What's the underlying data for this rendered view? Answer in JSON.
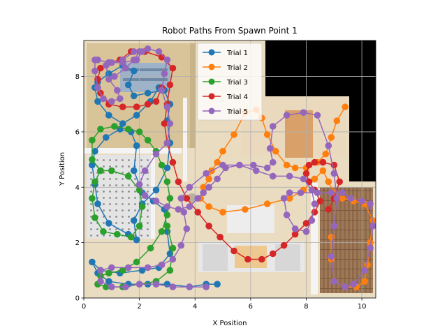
{
  "chart_data": {
    "type": "line",
    "title": "Robot Paths From Spawn Point 1",
    "xlabel": "X Position",
    "ylabel": "Y Position",
    "xlim": [
      0,
      10.5
    ],
    "ylim": [
      0,
      9.3
    ],
    "xticks": [
      0,
      2,
      4,
      6,
      8,
      10
    ],
    "yticks": [
      0,
      2,
      4,
      6,
      8
    ],
    "grid": true,
    "legend_placement": "top-center",
    "background": "overhead floor-plan image of a house interior",
    "series": [
      {
        "name": "Trial 1",
        "color": "#1f77b4",
        "x": [
          4.8,
          4.4,
          3.8,
          3.0,
          2.3,
          1.6,
          0.9,
          0.5,
          0.3,
          0.6,
          1.3,
          2.1,
          2.7,
          3.1,
          3.0,
          2.9,
          2.5,
          2.1,
          1.8,
          1.9,
          1.7,
          1.3,
          0.8,
          0.4,
          0.3,
          0.4,
          0.5,
          0.9,
          1.6,
          1.9,
          1.8,
          2.1,
          2.6,
          3.0,
          3.1,
          3.0,
          3.1,
          2.9,
          2.3,
          1.8,
          1.6,
          1.8,
          1.4,
          0.9,
          0.5,
          0.4,
          0.5,
          0.9,
          1.4,
          1.9,
          2.4,
          2.7
        ],
        "y": [
          0.5,
          0.5,
          0.4,
          0.5,
          0.5,
          0.5,
          0.6,
          0.9,
          1.3,
          1.0,
          0.9,
          1.0,
          1.1,
          1.6,
          2.4,
          3.2,
          3.5,
          3.8,
          4.6,
          5.5,
          6.0,
          6.1,
          5.8,
          5.3,
          4.8,
          4.1,
          3.4,
          2.7,
          2.3,
          2.1,
          2.8,
          3.4,
          3.9,
          4.7,
          5.6,
          6.4,
          7.0,
          7.5,
          7.4,
          7.3,
          7.7,
          8.2,
          8.4,
          8.1,
          7.8,
          7.6,
          7.1,
          6.6,
          6.3,
          6.6,
          7.1,
          7.6
        ]
      },
      {
        "name": "Trial 2",
        "color": "#ff7f0e",
        "x": [
          9.4,
          9.1,
          8.9,
          8.7,
          8.4,
          8.0,
          7.6,
          7.3,
          6.9,
          6.6,
          6.4,
          6.2,
          5.8,
          5.4,
          5.0,
          4.8,
          4.6,
          4.5,
          4.3,
          4.2,
          4.5,
          5.0,
          5.8,
          6.6,
          7.4,
          7.9,
          8.3,
          8.6,
          8.8,
          9.0,
          9.3,
          9.7,
          10.1,
          10.4,
          10.3,
          10.2,
          10.1,
          9.8,
          9.4,
          9.0,
          8.9,
          8.9
        ],
        "y": [
          6.9,
          6.4,
          5.8,
          5.2,
          4.9,
          4.7,
          4.7,
          4.8,
          5.3,
          5.9,
          6.5,
          6.8,
          6.7,
          5.9,
          5.3,
          4.9,
          4.6,
          4.3,
          4.0,
          3.6,
          3.3,
          3.1,
          3.2,
          3.4,
          3.6,
          3.9,
          4.3,
          4.6,
          4.2,
          3.8,
          3.6,
          3.5,
          3.4,
          2.8,
          2.0,
          1.2,
          0.6,
          0.4,
          0.4,
          0.6,
          1.4,
          2.2
        ]
      },
      {
        "name": "Trial 3",
        "color": "#2ca02c",
        "x": [
          0.6,
          0.4,
          0.3,
          0.4,
          0.7,
          1.2,
          1.7,
          2.0,
          2.1,
          2.0,
          1.6,
          1.0,
          0.6,
          0.3,
          0.3,
          0.6,
          1.1,
          1.6,
          2.0,
          2.3,
          2.6,
          2.8,
          3.0,
          3.1,
          3.0,
          2.8,
          2.4,
          1.9,
          1.4,
          0.9,
          0.6,
          0.5,
          0.8,
          1.4,
          2.0,
          2.6,
          3.1,
          3.2,
          3.0
        ],
        "y": [
          4.6,
          4.2,
          3.6,
          2.9,
          2.4,
          2.3,
          2.2,
          2.6,
          3.3,
          3.9,
          4.4,
          4.6,
          4.6,
          5.0,
          5.7,
          6.1,
          6.2,
          6.1,
          6.0,
          5.7,
          5.3,
          4.8,
          4.2,
          3.6,
          3.0,
          2.4,
          1.8,
          1.3,
          1.0,
          0.9,
          0.8,
          0.5,
          0.4,
          0.4,
          0.5,
          0.6,
          1.0,
          1.8,
          2.6
        ]
      },
      {
        "name": "Trial 4",
        "color": "#d62728",
        "x": [
          2.8,
          2.6,
          2.3,
          1.9,
          1.4,
          0.9,
          0.6,
          0.5,
          0.6,
          0.9,
          1.3,
          1.7,
          2.2,
          2.8,
          3.2,
          3.1,
          3.0,
          2.9,
          3.0,
          3.2,
          3.4,
          3.7,
          4.1,
          4.5,
          4.9,
          5.4,
          5.9,
          6.4,
          6.8,
          7.2,
          7.6,
          8.0,
          8.3,
          8.5,
          8.3,
          8.1,
          8.0,
          8.1,
          8.3,
          8.6,
          9.0,
          9.2,
          9.0,
          8.8
        ],
        "y": [
          7.6,
          7.1,
          7.0,
          6.9,
          6.9,
          7.0,
          7.4,
          7.9,
          8.3,
          8.5,
          8.6,
          8.9,
          8.9,
          8.7,
          8.3,
          7.7,
          7.0,
          6.3,
          5.6,
          4.9,
          4.2,
          3.6,
          3.1,
          2.6,
          2.2,
          1.7,
          1.4,
          1.4,
          1.6,
          1.9,
          2.3,
          2.7,
          3.1,
          3.5,
          3.9,
          4.2,
          4.5,
          4.8,
          4.9,
          4.9,
          4.8,
          4.2,
          3.6,
          3.2
        ]
      },
      {
        "name": "Trial 5",
        "color": "#9467bd",
        "x": [
          4.4,
          3.8,
          3.2,
          2.6,
          2.0,
          1.5,
          1.0,
          0.6,
          0.6,
          1.0,
          1.6,
          2.3,
          2.8,
          3.2,
          3.5,
          3.7,
          3.6,
          3.5,
          3.8,
          4.4,
          5.0,
          5.6,
          6.2,
          6.8,
          7.4,
          7.9,
          8.2,
          8.3,
          8.2,
          8.0,
          7.6,
          7.3,
          7.2,
          7.4,
          7.8,
          8.4,
          8.9,
          9.3,
          9.6,
          10.0,
          10.3,
          10.4,
          10.3,
          10.1,
          9.7,
          9.4,
          9.0,
          8.9,
          9.0,
          9.1,
          9.0,
          8.8,
          8.4,
          7.9,
          7.3,
          6.8,
          6.7,
          6.8,
          6.6,
          6.1,
          5.6,
          5.1,
          4.8,
          4.5,
          4.3,
          4.1,
          3.8,
          3.4,
          3.0,
          2.6,
          2.2,
          2.0,
          2.2,
          2.6,
          3.0,
          3.1,
          3.0,
          2.8,
          2.9,
          3.0,
          2.7,
          2.3,
          1.8,
          1.4,
          1.0,
          0.8,
          0.9,
          1.2,
          1.3,
          1.0,
          0.7,
          0.5,
          0.4,
          0.4,
          0.5,
          0.9,
          1.4,
          1.9,
          2.1,
          2.0,
          1.8,
          1.5,
          1.1
        ],
        "y": [
          0.4,
          0.4,
          0.4,
          0.5,
          0.5,
          0.4,
          0.4,
          0.6,
          1.0,
          1.1,
          1.1,
          1.1,
          1.2,
          1.4,
          1.9,
          2.5,
          3.1,
          3.6,
          4.0,
          4.5,
          4.8,
          4.8,
          4.6,
          4.4,
          4.4,
          4.3,
          3.9,
          3.4,
          2.8,
          2.4,
          2.5,
          3.0,
          3.6,
          3.8,
          3.8,
          3.8,
          3.8,
          3.8,
          3.6,
          3.5,
          3.4,
          2.6,
          1.8,
          1.0,
          0.5,
          0.4,
          0.6,
          1.5,
          2.6,
          3.6,
          4.5,
          5.5,
          6.6,
          6.7,
          6.6,
          6.2,
          5.4,
          4.9,
          4.7,
          4.8,
          4.8,
          4.7,
          4.3,
          4.0,
          3.8,
          3.6,
          3.3,
          3.2,
          3.3,
          3.5,
          3.7,
          4.1,
          4.6,
          5.2,
          5.6,
          6.3,
          6.9,
          7.5,
          8.1,
          8.6,
          8.9,
          9.0,
          8.9,
          8.6,
          8.5,
          8.4,
          7.9,
          7.5,
          7.2,
          7.1,
          7.2,
          7.6,
          8.2,
          8.6,
          8.6,
          8.5,
          8.5,
          8.6,
          8.9,
          8.9,
          8.6,
          8.3,
          8.0
        ]
      }
    ]
  }
}
